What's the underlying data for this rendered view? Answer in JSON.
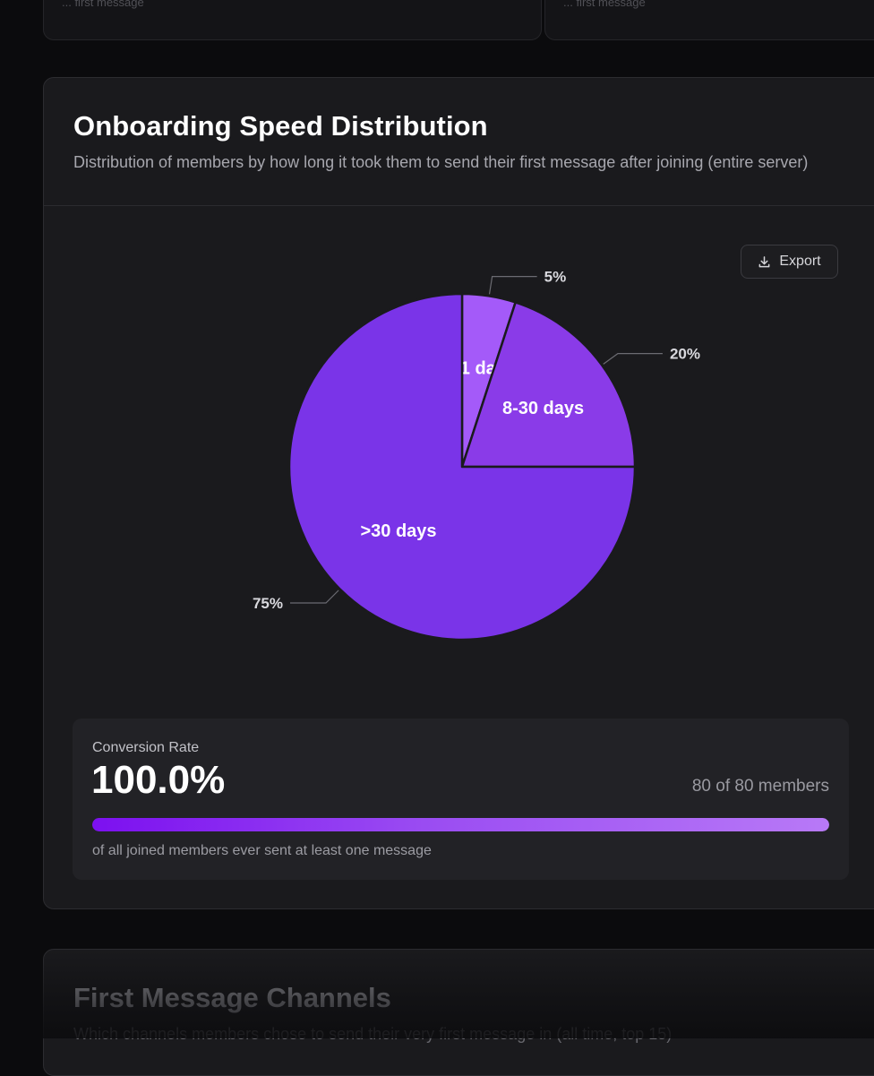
{
  "top_cards": {
    "left_text": "... first message",
    "right_text": "... first message"
  },
  "onboarding": {
    "title": "Onboarding Speed Distribution",
    "subtitle": "Distribution of members by how long it took them to send their first message after joining (entire server)",
    "export_label": "Export",
    "export_icon": "download-icon"
  },
  "chart_data": {
    "type": "pie",
    "categories": [
      "<1 day",
      "8-30 days",
      ">30 days"
    ],
    "values": [
      5,
      20,
      75
    ],
    "value_labels": [
      "5%",
      "20%",
      "75%"
    ],
    "colors": [
      "#a45af9",
      "#8a3be8",
      "#7a34e8"
    ],
    "legend": "none"
  },
  "conversion": {
    "label": "Conversion Rate",
    "value": "100.0%",
    "count": "80 of 80 members",
    "fraction": 1.0,
    "note": "of all joined members ever sent at least one message"
  },
  "first_message_channels": {
    "title": "First Message Channels",
    "subtitle": "Which channels members chose to send their very first message in (all time, top 15)"
  }
}
